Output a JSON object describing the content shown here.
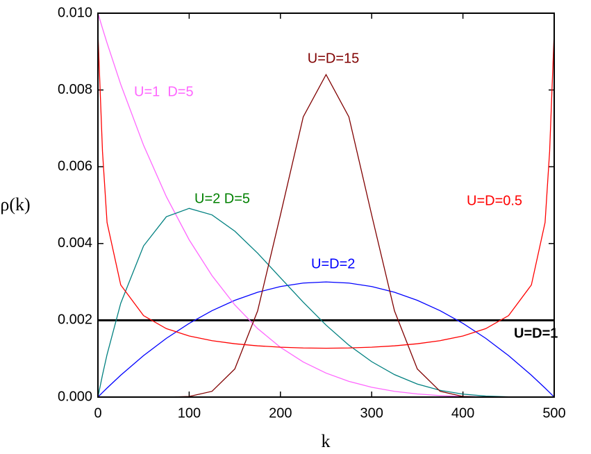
{
  "chart_data": {
    "type": "line",
    "x_label": "k",
    "y_label": "ρ(k)",
    "x": [
      0,
      5,
      10,
      25,
      50,
      75,
      100,
      125,
      150,
      175,
      200,
      225,
      250,
      275,
      300,
      325,
      350,
      375,
      400,
      425,
      450,
      475,
      490,
      495,
      500
    ],
    "series": [
      {
        "name": "U=D=1",
        "color": "#000000",
        "label_color": "#000000",
        "width": 3,
        "bold": true,
        "values": [
          0.002,
          0.002,
          0.002,
          0.002,
          0.002,
          0.002,
          0.002,
          0.002,
          0.002,
          0.002,
          0.002,
          0.002,
          0.002,
          0.002,
          0.002,
          0.002,
          0.002,
          0.002,
          0.002,
          0.002,
          0.002,
          0.002,
          0.002,
          0.002,
          0.002
        ]
      },
      {
        "name": "U=D=2",
        "color": "#0000ff",
        "label_color": "#0000ff",
        "width": 1.3,
        "values": [
          0,
          0.000119,
          0.000235,
          0.00057,
          0.00108,
          0.00153,
          0.00192,
          0.00225,
          0.00252,
          0.00273,
          0.00288,
          0.00297,
          0.003,
          0.00297,
          0.00288,
          0.00273,
          0.00252,
          0.00225,
          0.00192,
          0.00153,
          0.00108,
          0.00057,
          0.000235,
          0.000119,
          0
        ]
      },
      {
        "name": "U=1  D=5",
        "color": "#ff66ff",
        "label_color": "#ff66ff",
        "width": 1.3,
        "values": [
          0.01,
          0.009606,
          0.009224,
          0.008145,
          0.006561,
          0.00522,
          0.004096,
          0.003164,
          0.002401,
          0.001785,
          0.001296,
          0.000915,
          0.000625,
          0.00041,
          0.000256,
          0.00015,
          8.1e-05,
          3.9e-05,
          1.6e-05,
          5e-06,
          1e-06,
          0,
          0,
          0,
          0
        ]
      },
      {
        "name": "U=2 D=5",
        "color": "#008080",
        "label_color": "#008000",
        "width": 1.3,
        "values": [
          0,
          0.000576,
          0.001107,
          0.002444,
          0.003937,
          0.004698,
          0.004915,
          0.004746,
          0.004322,
          0.003749,
          0.00311,
          0.002471,
          0.001875,
          0.001353,
          0.000922,
          0.000585,
          0.00034,
          0.000176,
          7.7e-05,
          2.6e-05,
          6e-06,
          0,
          0,
          0,
          0
        ]
      },
      {
        "name": "U=D=15",
        "color": "#800000",
        "label_color": "#800000",
        "width": 1.3,
        "values": [
          0,
          0,
          0,
          0,
          0,
          0,
          1.62e-05,
          0.00015,
          0.000732,
          0.002244,
          0.004743,
          0.0073,
          0.0084,
          0.0073,
          0.004743,
          0.002244,
          0.000732,
          0.00015,
          1.62e-05,
          0,
          0,
          0,
          0,
          0,
          0
        ]
      },
      {
        "name": "U=D=0.5",
        "color": "#ff0000",
        "label_color": "#ff0000",
        "width": 1.3,
        "values": [
          0.0095,
          0.0064,
          0.004547,
          0.002921,
          0.002122,
          0.001783,
          0.001592,
          0.00147,
          0.001389,
          0.001335,
          0.0013,
          0.00128,
          0.001273,
          0.00128,
          0.0013,
          0.001335,
          0.001389,
          0.00147,
          0.001592,
          0.001783,
          0.002122,
          0.002921,
          0.004547,
          0.0064,
          0.0095
        ]
      }
    ],
    "xlim": [
      0,
      500
    ],
    "xticks": [
      0,
      100,
      200,
      300,
      400,
      500
    ],
    "ylim": [
      0,
      0.01
    ],
    "yticks": [
      {
        "value": 0,
        "label": "0.000"
      },
      {
        "value": 0.002,
        "label": "0.002"
      },
      {
        "value": 0.004,
        "label": "0.004"
      },
      {
        "value": 0.006,
        "label": "0.006"
      },
      {
        "value": 0.008,
        "label": "0.008"
      },
      {
        "value": 0.01,
        "label": "0.010"
      }
    ],
    "grid": false
  }
}
